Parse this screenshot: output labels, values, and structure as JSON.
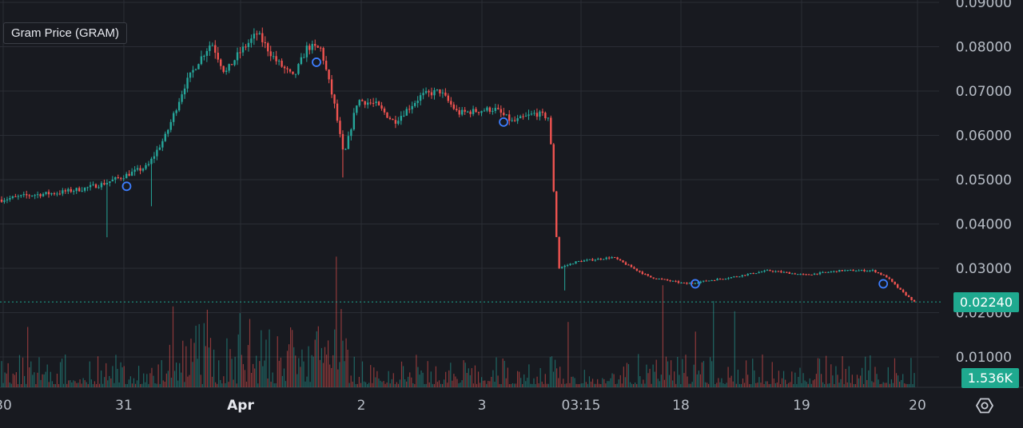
{
  "series_label": "Gram Price (GRAM)",
  "current_price_label": "0.02240",
  "current_volume_label": "1.536K",
  "colors": {
    "background": "#181a20",
    "grid": "#2a2d35",
    "up": "#26a69a",
    "down": "#ef5350",
    "axis_text": "#b7bdc6",
    "marker": "#3d7eff",
    "badge": "#1fa98f"
  },
  "settings_icon": "settings-hexagon-icon",
  "chart_data": {
    "type": "candlestick",
    "title": "Gram Price (GRAM)",
    "y_ticks": [
      "0.09000",
      "0.08000",
      "0.07000",
      "0.06000",
      "0.05000",
      "0.04000",
      "0.03000",
      "0.02000",
      "0.01000"
    ],
    "ylim": [
      0,
      0.09
    ],
    "x_ticks": [
      "30",
      "31",
      "Apr",
      "2",
      "3",
      "03:15",
      "18",
      "19",
      "20"
    ],
    "grid": true,
    "last_price": 0.0224,
    "last_volume": "1.536K",
    "price_path": [
      [
        0,
        0.0455
      ],
      [
        0.03,
        0.0465
      ],
      [
        0.06,
        0.047
      ],
      [
        0.09,
        0.048
      ],
      [
        0.11,
        0.049
      ],
      [
        0.13,
        0.0505
      ],
      [
        0.16,
        0.053
      ],
      [
        0.18,
        0.06
      ],
      [
        0.2,
        0.071
      ],
      [
        0.215,
        0.0765
      ],
      [
        0.23,
        0.081
      ],
      [
        0.245,
        0.074
      ],
      [
        0.26,
        0.0785
      ],
      [
        0.28,
        0.083
      ],
      [
        0.3,
        0.077
      ],
      [
        0.32,
        0.073
      ],
      [
        0.335,
        0.08
      ],
      [
        0.35,
        0.0795
      ],
      [
        0.365,
        0.0665
      ],
      [
        0.375,
        0.055
      ],
      [
        0.39,
        0.068
      ],
      [
        0.41,
        0.067
      ],
      [
        0.43,
        0.063
      ],
      [
        0.46,
        0.069
      ],
      [
        0.48,
        0.07
      ],
      [
        0.5,
        0.065
      ],
      [
        0.54,
        0.066
      ],
      [
        0.56,
        0.063
      ],
      [
        0.585,
        0.065
      ],
      [
        0.6,
        0.064
      ],
      [
        0.61,
        0.03
      ],
      [
        0.63,
        0.0315
      ],
      [
        0.67,
        0.0325
      ],
      [
        0.71,
        0.028
      ],
      [
        0.75,
        0.0265
      ],
      [
        0.8,
        0.028
      ],
      [
        0.84,
        0.0295
      ],
      [
        0.88,
        0.0285
      ],
      [
        0.92,
        0.0295
      ],
      [
        0.955,
        0.0295
      ],
      [
        0.97,
        0.028
      ],
      [
        0.985,
        0.025
      ],
      [
        1.0,
        0.0224
      ]
    ],
    "spikes": [
      {
        "t": 0.117,
        "low": 0.037
      },
      {
        "t": 0.165,
        "low": 0.044
      },
      {
        "t": 0.375,
        "low": 0.0505
      },
      {
        "t": 0.616,
        "low": 0.025
      }
    ],
    "event_markers": [
      {
        "t": 0.137,
        "price": 0.0485
      },
      {
        "t": 0.345,
        "price": 0.0765
      },
      {
        "t": 0.55,
        "price": 0.063
      },
      {
        "t": 0.76,
        "price": 0.0265
      },
      {
        "t": 0.966,
        "price": 0.0265
      }
    ]
  }
}
